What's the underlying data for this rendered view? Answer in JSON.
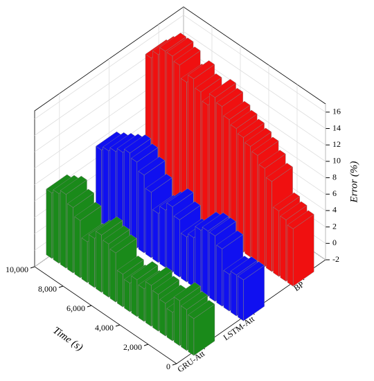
{
  "chart_data": {
    "type": "waterfall3d",
    "x": [
      0,
      500,
      1000,
      1500,
      2000,
      2500,
      3000,
      3500,
      4000,
      4500,
      5000,
      5500,
      6000,
      6500,
      7000,
      7500,
      8000,
      8500,
      9000,
      9500,
      10000
    ],
    "series": [
      {
        "name": "GRU-Att",
        "color": "#1a8a1a",
        "values": [
          2.5,
          3,
          3.5,
          1.5,
          2,
          2.5,
          3,
          2,
          2.5,
          1.5,
          2,
          4,
          4.5,
          5,
          4,
          3,
          5,
          6,
          7,
          6.5,
          6
        ]
      },
      {
        "name": "LSTM-Att",
        "color": "#1010f0",
        "values": [
          3,
          3,
          2.5,
          5,
          6,
          6,
          5.5,
          4,
          3.5,
          5,
          6,
          5,
          4,
          6,
          7.5,
          8.5,
          9,
          8.5,
          8,
          7.5,
          7
        ]
      },
      {
        "name": "BP",
        "color": "#f01010",
        "values": [
          5,
          5.5,
          6,
          9,
          10,
          11,
          11.5,
          12,
          12.5,
          13,
          14,
          14.5,
          13,
          14,
          15,
          14,
          15.5,
          16,
          16,
          15,
          14
        ]
      }
    ],
    "xlim": [
      0,
      10000
    ],
    "xticks": [
      0,
      {
        "value": 2000,
        "label": "2,000"
      },
      {
        "value": 4000,
        "label": "4,000"
      },
      {
        "value": 6000,
        "label": "6,000"
      },
      {
        "value": 8000,
        "label": "8,000"
      },
      {
        "value": 10000,
        "label": "10,000"
      }
    ],
    "ylim": [
      -2,
      17
    ],
    "yticks": [
      -2,
      0,
      2,
      4,
      6,
      8,
      10,
      12,
      14,
      16
    ],
    "xlabel": "Time (s)",
    "ylabel": "Error (%)",
    "grid": true
  }
}
